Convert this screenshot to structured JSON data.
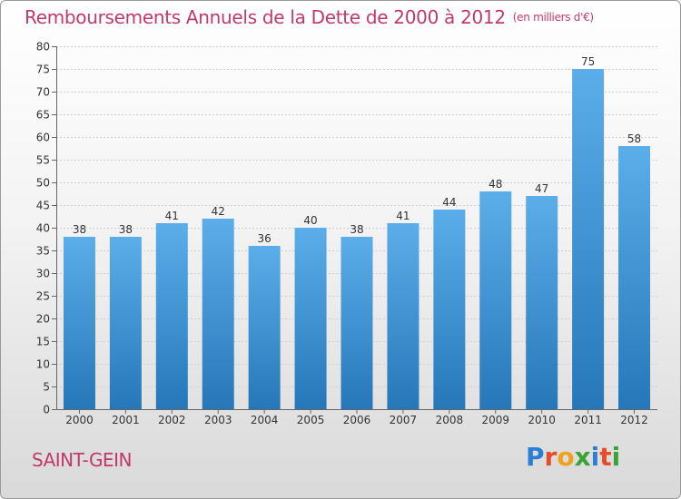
{
  "title": "Remboursements Annuels de la Dette de 2000 à 2012",
  "unit_label": "(en milliers d'€)",
  "commune": "SAINT-GEIN",
  "logo": {
    "text": "Proxiti",
    "letters": [
      {
        "ch": "P",
        "color": "#2a7fd4"
      },
      {
        "ch": "r",
        "color": "#e84a2a"
      },
      {
        "ch": "o",
        "color": "#f2a11c"
      },
      {
        "ch": "x",
        "color": "#3aa335"
      },
      {
        "ch": "i",
        "color": "#2a7fd4"
      },
      {
        "ch": "t",
        "color": "#e84a2a"
      },
      {
        "ch": "i",
        "color": "#3aa335"
      }
    ]
  },
  "colors": {
    "bar_light": "#5baee9",
    "bar_dark": "#2677b8",
    "title": "#c0396b"
  },
  "chart_data": {
    "type": "bar",
    "title": "Remboursements Annuels de la Dette de 2000 à 2012",
    "xlabel": "",
    "ylabel": "en milliers d'€",
    "categories": [
      "2000",
      "2001",
      "2002",
      "2003",
      "2004",
      "2005",
      "2006",
      "2007",
      "2008",
      "2009",
      "2010",
      "2011",
      "2012"
    ],
    "values": [
      38,
      38,
      41,
      42,
      36,
      40,
      38,
      41,
      44,
      48,
      47,
      75,
      58
    ],
    "ylim": [
      0,
      80
    ],
    "yticks": [
      0,
      5,
      10,
      15,
      20,
      25,
      30,
      35,
      40,
      45,
      50,
      55,
      60,
      65,
      70,
      75,
      80
    ],
    "grid": true
  }
}
